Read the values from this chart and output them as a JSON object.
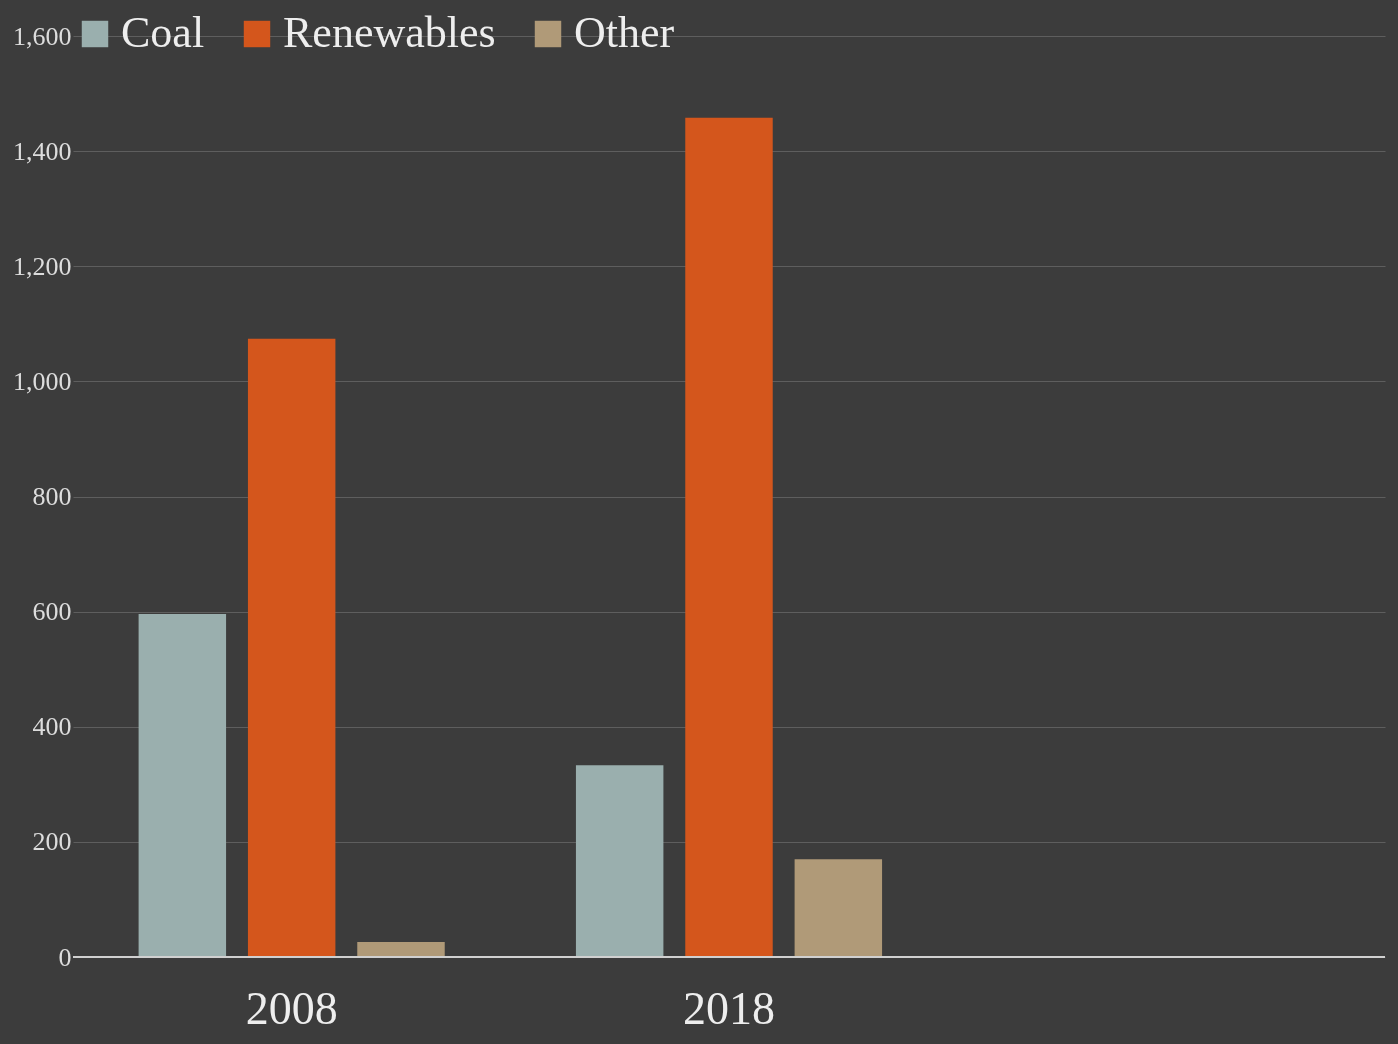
{
  "chart_data": {
    "type": "bar",
    "categories": [
      "2008",
      "2018",
      null
    ],
    "series": [
      {
        "name": "Coal",
        "color": "#9aafae",
        "values": [
          596,
          333,
          null
        ]
      },
      {
        "name": "Renewables",
        "color": "#d4561c",
        "values": [
          1074,
          1458,
          null
        ]
      },
      {
        "name": "Other",
        "color": "#b09a78",
        "values": [
          26,
          170,
          null
        ]
      }
    ],
    "ylim": [
      0,
      1600
    ],
    "yticks": [
      0,
      200,
      400,
      600,
      800,
      {
        "value": 1000,
        "label": "1,000"
      },
      {
        "value": 1200,
        "label": "1,200"
      },
      {
        "value": 1400,
        "label": "1,400"
      },
      {
        "value": 1600,
        "label": "1,600"
      }
    ],
    "grid": "y",
    "legend": "top"
  }
}
